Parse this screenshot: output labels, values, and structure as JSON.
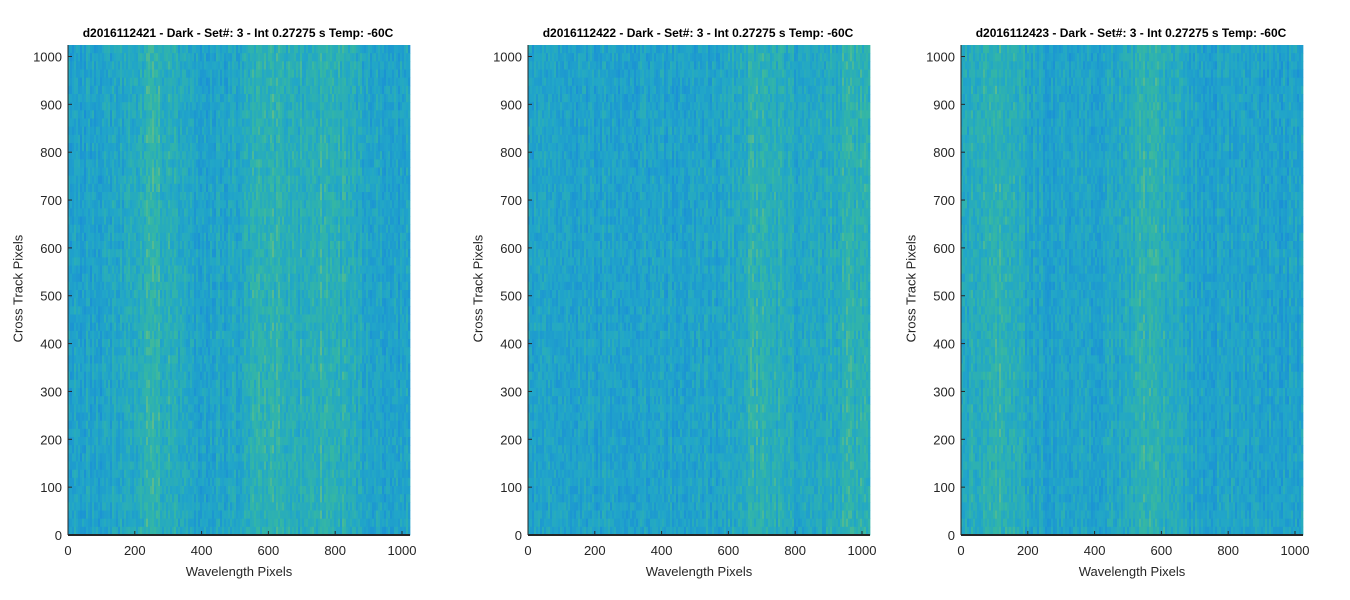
{
  "chart_data": [
    {
      "type": "heatmap",
      "title": "d2016112421 - Dark - Set#: 3 - Int 0.27275 s Temp: -60C",
      "xlabel": "Wavelength Pixels",
      "ylabel": "Cross Track Pixels",
      "xlim": [
        0,
        1024
      ],
      "ylim": [
        0,
        1024
      ],
      "xticks": [
        "0",
        "200",
        "400",
        "600",
        "800",
        "1000"
      ],
      "yticks": [
        "0",
        "100",
        "200",
        "300",
        "400",
        "500",
        "600",
        "700",
        "800",
        "900",
        "1000"
      ],
      "colormap": [
        "#1a8fd6",
        "#21a6c8",
        "#35b7a3",
        "#9ac56a"
      ],
      "bright_bands_x": [
        260,
        600,
        780
      ]
    },
    {
      "type": "heatmap",
      "title": "d2016112422 - Dark - Set#: 3 - Int 0.27275 s Temp: -60C",
      "xlabel": "Wavelength Pixels",
      "ylabel": "Cross Track Pixels",
      "xlim": [
        0,
        1024
      ],
      "ylim": [
        0,
        1024
      ],
      "xticks": [
        "0",
        "200",
        "400",
        "600",
        "800",
        "1000"
      ],
      "yticks": [
        "0",
        "100",
        "200",
        "300",
        "400",
        "500",
        "600",
        "700",
        "800",
        "900",
        "1000"
      ],
      "colormap": [
        "#1a8fd6",
        "#21a6c8",
        "#35b7a3",
        "#9ac56a"
      ],
      "bright_bands_x": [
        700,
        980
      ]
    },
    {
      "type": "heatmap",
      "title": "d2016112423 - Dark - Set#: 3 - Int 0.27275 s Temp: -60C",
      "xlabel": "Wavelength Pixels",
      "ylabel": "Cross Track Pixels",
      "xlim": [
        0,
        1024
      ],
      "ylim": [
        0,
        1024
      ],
      "xticks": [
        "0",
        "200",
        "400",
        "600",
        "800",
        "1000"
      ],
      "yticks": [
        "0",
        "100",
        "200",
        "300",
        "400",
        "500",
        "600",
        "700",
        "800",
        "900",
        "1000"
      ],
      "colormap": [
        "#1a8fd6",
        "#21a6c8",
        "#35b7a3",
        "#9ac56a"
      ],
      "bright_bands_x": [
        100,
        560
      ]
    }
  ]
}
